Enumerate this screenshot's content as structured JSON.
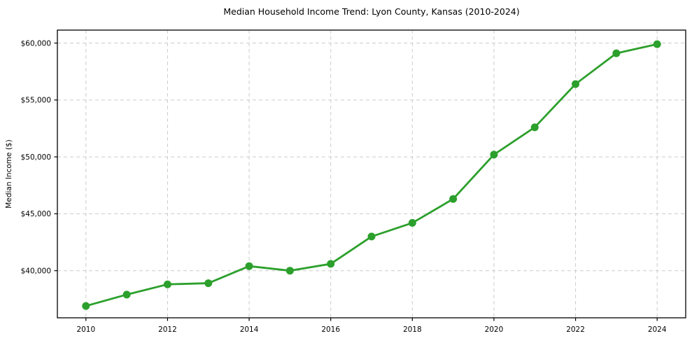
{
  "chart_data": {
    "type": "line",
    "title": "Median Household Income Trend: Lyon County, Kansas (2010-2024)",
    "xlabel": "",
    "ylabel": "Median Income ($)",
    "x": [
      2010,
      2011,
      2012,
      2013,
      2014,
      2015,
      2016,
      2017,
      2018,
      2019,
      2020,
      2021,
      2022,
      2023,
      2024
    ],
    "series": [
      {
        "name": "Median Household Income",
        "values": [
          36900,
          37900,
          38800,
          38900,
          40400,
          40000,
          40600,
          43000,
          44200,
          46300,
          50200,
          52600,
          56400,
          59100,
          59900
        ]
      }
    ],
    "xticks": [
      2010,
      2012,
      2014,
      2016,
      2018,
      2020,
      2022,
      2024
    ],
    "xtick_labels": [
      "2010",
      "2012",
      "2014",
      "2016",
      "2018",
      "2020",
      "2022",
      "2024"
    ],
    "yticks": [
      40000,
      45000,
      50000,
      55000,
      60000
    ],
    "ytick_labels": [
      "$40,000",
      "$45,000",
      "$50,000",
      "$55,000",
      "$60,000"
    ],
    "xlim": [
      2009.3,
      2024.7
    ],
    "ylim": [
      35860,
      61140
    ],
    "grid": true,
    "grid_style": "dashed",
    "legend_position": "none",
    "marker": "circle",
    "colors": {
      "line": "#2ca02c",
      "marker": "#2ca02c",
      "grid": "#cccccc",
      "axis": "#000000",
      "text": "#000000",
      "background": "#ffffff"
    }
  }
}
